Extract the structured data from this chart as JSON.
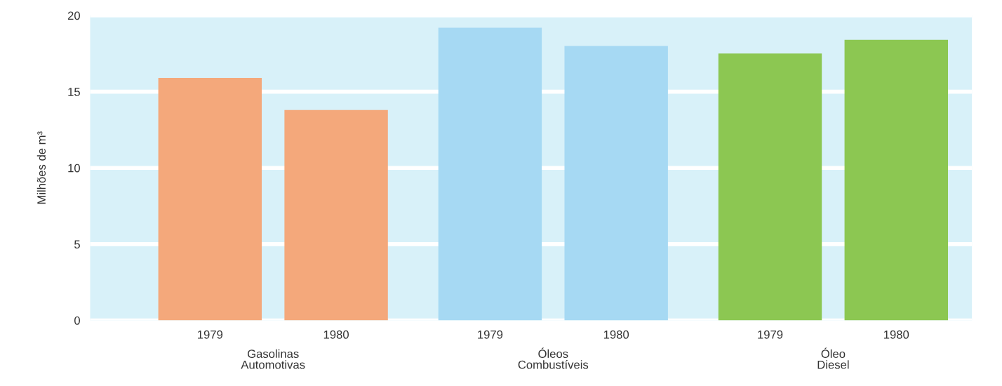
{
  "chart_data": {
    "type": "bar",
    "ylabel": "Milhões de m³",
    "categories": [
      "1979",
      "1980",
      "1979",
      "1980",
      "1979",
      "1980"
    ],
    "values": [
      15.9,
      13.8,
      19.2,
      18.0,
      17.5,
      18.4
    ],
    "colors": [
      "#f4a87b",
      "#f4a87b",
      "#a6d9f3",
      "#a6d9f3",
      "#8cc752",
      "#8cc752"
    ],
    "annotations": [
      "Gasolinas\nAutomotivas",
      "Óleos\nCombustíveis",
      "Óleo\nDiesel"
    ],
    "ylim": [
      0,
      20
    ],
    "yticks": [
      0,
      5,
      10,
      15,
      20
    ],
    "grid": "y"
  }
}
